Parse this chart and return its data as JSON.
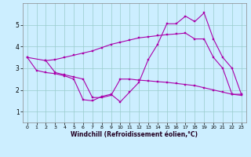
{
  "background_color": "#cceeff",
  "line_color": "#aa00aa",
  "xlabel": "Windchill (Refroidissement éolien,°C)",
  "xlim": [
    -0.5,
    23.5
  ],
  "ylim": [
    0.5,
    6.0
  ],
  "yticks": [
    1,
    2,
    3,
    4,
    5
  ],
  "xticks": [
    0,
    1,
    2,
    3,
    4,
    5,
    6,
    7,
    8,
    9,
    10,
    11,
    12,
    13,
    14,
    15,
    16,
    17,
    18,
    19,
    20,
    21,
    22,
    23
  ],
  "line1_x": [
    0,
    2,
    3,
    4,
    5,
    6,
    7,
    8,
    9,
    10,
    11,
    12,
    13,
    14,
    15,
    16,
    17,
    18,
    19,
    20,
    21,
    22,
    23
  ],
  "line1_y": [
    3.5,
    3.35,
    3.4,
    3.5,
    3.6,
    3.7,
    3.8,
    3.95,
    4.1,
    4.2,
    4.3,
    4.4,
    4.45,
    4.5,
    4.55,
    4.58,
    4.62,
    4.35,
    4.35,
    3.5,
    3.0,
    1.8,
    1.8
  ],
  "line2_x": [
    0,
    1,
    2,
    3,
    4,
    5,
    6,
    7,
    8,
    9,
    10,
    11,
    12,
    13,
    14,
    15,
    16,
    17,
    18,
    19,
    20,
    21,
    22,
    23
  ],
  "line2_y": [
    3.5,
    2.9,
    2.8,
    2.75,
    2.65,
    2.5,
    1.55,
    1.5,
    1.7,
    1.8,
    1.45,
    1.9,
    2.35,
    3.4,
    4.1,
    5.05,
    5.05,
    5.4,
    5.15,
    5.55,
    4.35,
    3.5,
    3.0,
    1.8
  ],
  "line3_x": [
    2,
    3,
    4,
    5,
    6,
    7,
    8,
    9,
    10,
    11,
    12,
    13,
    14,
    15,
    16,
    17,
    18,
    19,
    20,
    21,
    22,
    23
  ],
  "line3_y": [
    3.35,
    2.8,
    2.7,
    2.6,
    2.5,
    1.65,
    1.65,
    1.75,
    2.5,
    2.5,
    2.45,
    2.42,
    2.38,
    2.35,
    2.3,
    2.25,
    2.2,
    2.1,
    2.0,
    1.9,
    1.8,
    1.75
  ],
  "grid_color": "#99cccc",
  "xlabel_color": "#220022",
  "xlabel_fontsize": 5.5,
  "tick_fontsize_x": 4.5,
  "tick_fontsize_y": 5.5,
  "linewidth": 0.8,
  "markersize": 2.0
}
